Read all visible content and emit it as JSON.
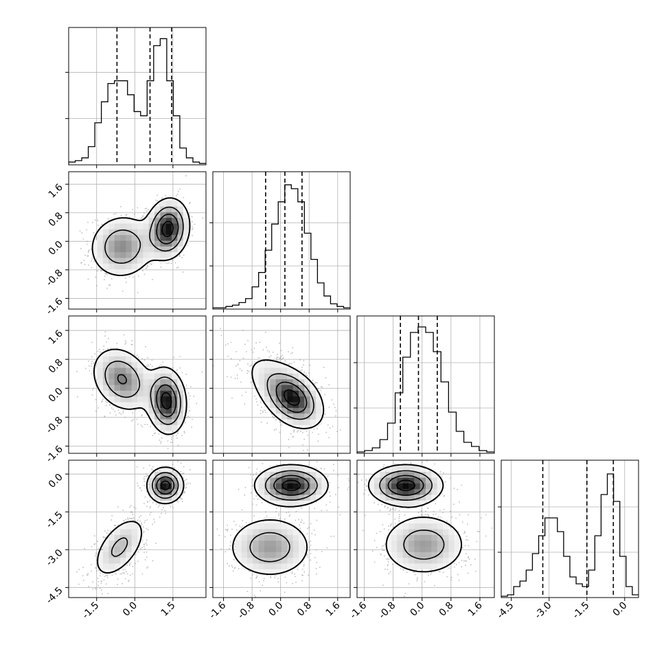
{
  "chart_data": {
    "type": "corner",
    "grid": true,
    "variables": [
      {
        "index": 0,
        "range": [
          -2.6,
          2.8
        ],
        "ticks": [
          "-1.5",
          "0.0",
          "1.5"
        ],
        "tick_values": [
          -1.5,
          0.0,
          1.5
        ],
        "quantiles": [
          -0.7,
          0.6,
          1.45
        ]
      },
      {
        "index": 1,
        "range": [
          -1.9,
          1.95
        ],
        "ticks": [
          "-1.6",
          "-0.8",
          "0.0",
          "0.8",
          "1.6"
        ],
        "tick_values": [
          -1.6,
          -0.8,
          0.0,
          0.8,
          1.6
        ],
        "quantiles": [
          -0.42,
          0.12,
          0.6
        ]
      },
      {
        "index": 2,
        "range": [
          -1.8,
          2.0
        ],
        "ticks": [
          "-1.6",
          "-0.8",
          "0.0",
          "0.8",
          "1.6"
        ],
        "tick_values": [
          -1.6,
          -0.8,
          0.0,
          0.8,
          1.6
        ],
        "quantiles": [
          -0.6,
          -0.1,
          0.42
        ]
      },
      {
        "index": 3,
        "range": [
          -4.9,
          0.55
        ],
        "ticks": [
          "-4.5",
          "-3.0",
          "-1.5",
          "0.0"
        ],
        "tick_values": [
          -4.5,
          -3.0,
          -1.5,
          0.0
        ],
        "quantiles": [
          -3.25,
          -1.5,
          -0.45
        ]
      }
    ],
    "histograms": [
      {
        "var": 0,
        "values": [
          0.02,
          0.03,
          0.05,
          0.13,
          0.3,
          0.45,
          0.58,
          0.6,
          0.6,
          0.5,
          0.38,
          0.35,
          0.6,
          0.85,
          0.9,
          0.6,
          0.35,
          0.12,
          0.05,
          0.02,
          0.01
        ],
        "ymax": 0.98,
        "hgrid": [
          0.33,
          0.66
        ]
      },
      {
        "var": 1,
        "values": [
          0.01,
          0.01,
          0.02,
          0.03,
          0.05,
          0.08,
          0.17,
          0.28,
          0.45,
          0.65,
          0.82,
          0.95,
          0.92,
          0.82,
          0.58,
          0.38,
          0.2,
          0.1,
          0.04,
          0.02,
          0.01
        ],
        "ymax": 1.05,
        "hgrid": [
          0.33,
          0.66
        ]
      },
      {
        "var": 2,
        "values": [
          0.01,
          0.02,
          0.04,
          0.1,
          0.22,
          0.44,
          0.7,
          0.88,
          0.92,
          0.88,
          0.74,
          0.52,
          0.3,
          0.16,
          0.08,
          0.05,
          0.02,
          0.01
        ],
        "ymax": 1.0,
        "hgrid": [
          0.33,
          0.66
        ]
      },
      {
        "var": 3,
        "values": [
          0.01,
          0.02,
          0.08,
          0.12,
          0.2,
          0.32,
          0.45,
          0.58,
          0.58,
          0.48,
          0.3,
          0.15,
          0.1,
          0.08,
          0.2,
          0.45,
          0.75,
          0.9,
          0.7,
          0.3,
          0.08,
          0.02
        ],
        "ymax": 1.0,
        "hgrid": [
          0.33,
          0.66
        ]
      }
    ],
    "pairs": [
      {
        "x": 0,
        "y": 1,
        "clusters": [
          {
            "cx": -0.5,
            "cy": -0.15,
            "sx": 0.65,
            "sy": 0.45,
            "rho": 0.05,
            "w": 0.5
          },
          {
            "cx": 1.3,
            "cy": 0.35,
            "sx": 0.42,
            "sy": 0.42,
            "rho": 0.1,
            "w": 0.5
          }
        ]
      },
      {
        "x": 0,
        "y": 2,
        "clusters": [
          {
            "cx": -0.5,
            "cy": 0.25,
            "sx": 0.6,
            "sy": 0.45,
            "rho": -0.25,
            "w": 0.5
          },
          {
            "cx": 1.25,
            "cy": -0.35,
            "sx": 0.38,
            "sy": 0.45,
            "rho": -0.1,
            "w": 0.5
          }
        ]
      },
      {
        "x": 1,
        "y": 2,
        "clusters": [
          {
            "cx": 0.1,
            "cy": -0.05,
            "sx": 0.6,
            "sy": 0.55,
            "rho": -0.6,
            "w": 0.5
          },
          {
            "cx": 0.35,
            "cy": -0.3,
            "sx": 0.38,
            "sy": 0.38,
            "rho": -0.3,
            "w": 0.5
          }
        ]
      },
      {
        "x": 0,
        "y": 3,
        "clusters": [
          {
            "cx": -0.6,
            "cy": -2.9,
            "sx": 0.55,
            "sy": 0.65,
            "rho": 0.55,
            "w": 0.5
          },
          {
            "cx": 1.2,
            "cy": -0.45,
            "sx": 0.35,
            "sy": 0.35,
            "rho": 0.0,
            "w": 0.5
          }
        ]
      },
      {
        "x": 1,
        "y": 3,
        "clusters": [
          {
            "cx": -0.3,
            "cy": -2.9,
            "sx": 0.6,
            "sy": 0.62,
            "rho": 0.0,
            "w": 0.5
          },
          {
            "cx": 0.3,
            "cy": -0.45,
            "sx": 0.5,
            "sy": 0.4,
            "rho": 0.0,
            "w": 0.5
          }
        ]
      },
      {
        "x": 2,
        "y": 3,
        "clusters": [
          {
            "cx": 0.05,
            "cy": -2.8,
            "sx": 0.6,
            "sy": 0.62,
            "rho": 0.0,
            "w": 0.5
          },
          {
            "cx": -0.45,
            "cy": -0.45,
            "sx": 0.5,
            "sy": 0.4,
            "rho": 0.0,
            "w": 0.5
          }
        ]
      }
    ]
  }
}
